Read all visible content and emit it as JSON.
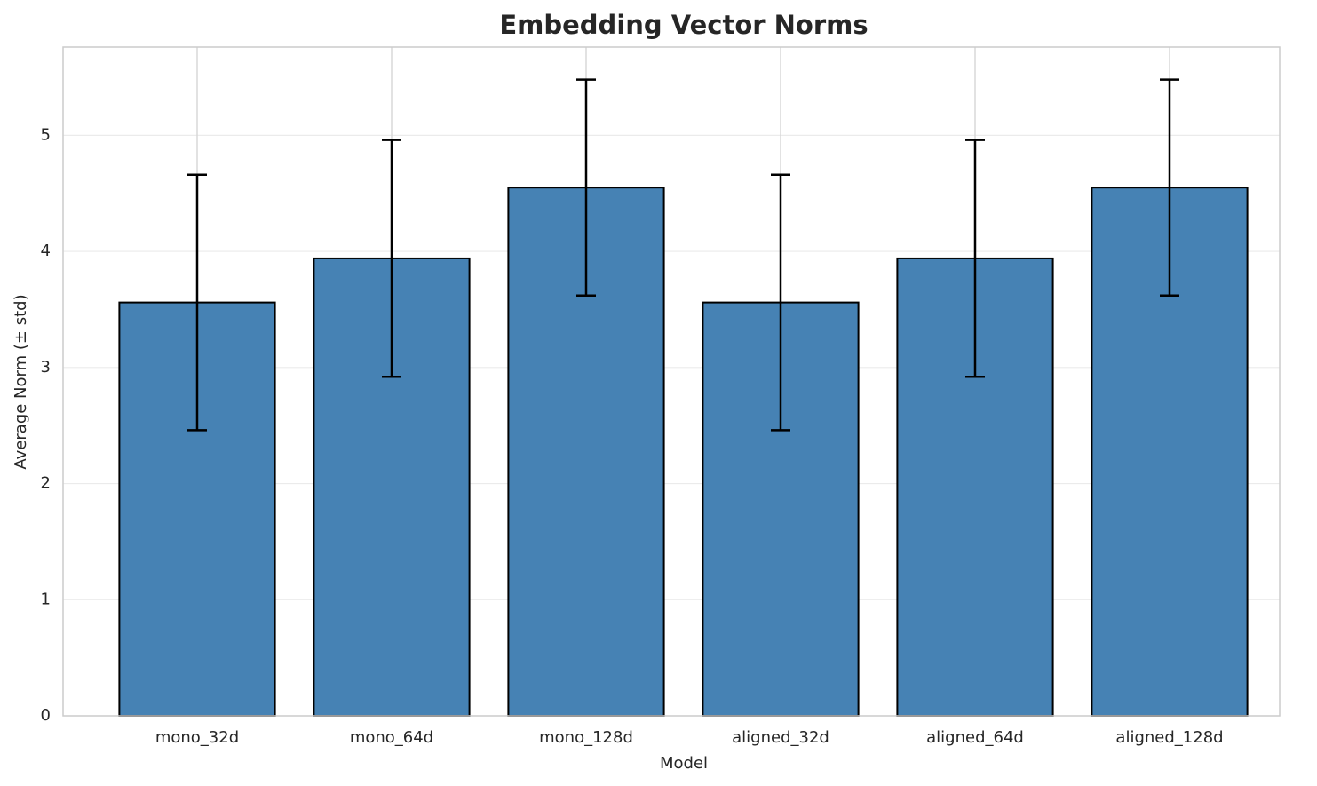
{
  "chart_data": {
    "type": "bar",
    "title": "Embedding Vector Norms",
    "x_label": "Model",
    "y_label": "Average Norm (± std)",
    "categories": [
      "mono_32d",
      "mono_64d",
      "mono_128d",
      "aligned_32d",
      "aligned_64d",
      "aligned_128d"
    ],
    "values": [
      3.56,
      3.94,
      4.55,
      3.56,
      3.94,
      4.55
    ],
    "errors": [
      1.1,
      1.02,
      0.93,
      1.1,
      1.02,
      0.93
    ],
    "color": "#4682b4",
    "ylim": [
      0,
      5.76
    ],
    "yticks": [
      0,
      1,
      2,
      3,
      4,
      5
    ],
    "grid": true
  }
}
